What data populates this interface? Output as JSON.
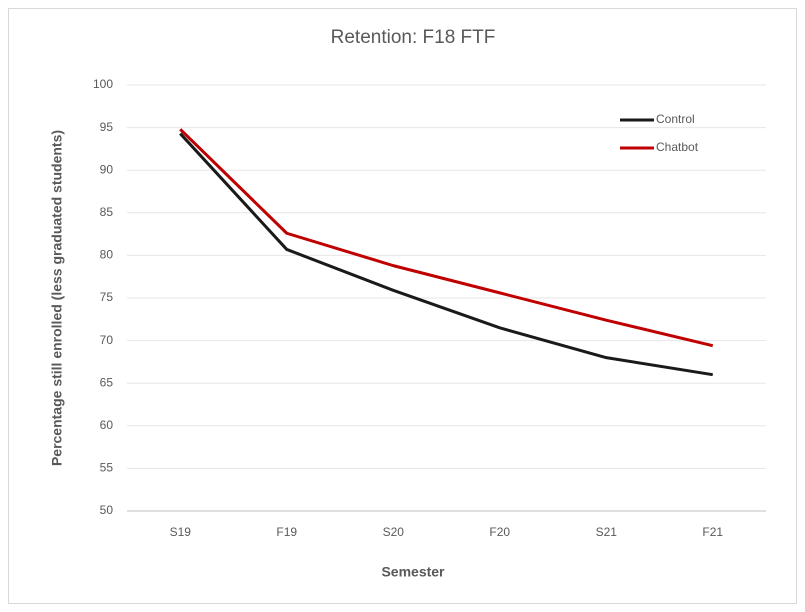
{
  "chart_data": {
    "type": "line",
    "title": "Retention: F18 FTF",
    "x_label": "Semester",
    "y_label": "Percentage still enrolled (less  graduated students)",
    "categories": [
      "S19",
      "F19",
      "S20",
      "F20",
      "S21",
      "F21"
    ],
    "series": [
      {
        "name": "Control",
        "color": "#1a1a1a",
        "values": [
          94.3,
          80.7,
          75.9,
          71.5,
          68.0,
          66.0
        ]
      },
      {
        "name": "Chatbot",
        "color": "#c00000",
        "values": [
          94.8,
          82.6,
          78.8,
          75.6,
          72.4,
          69.4
        ]
      }
    ],
    "ylim": [
      50,
      100
    ],
    "yticks": [
      50,
      55,
      60,
      65,
      70,
      75,
      80,
      85,
      90,
      95,
      100
    ],
    "grid": true,
    "legend": "upper right"
  }
}
